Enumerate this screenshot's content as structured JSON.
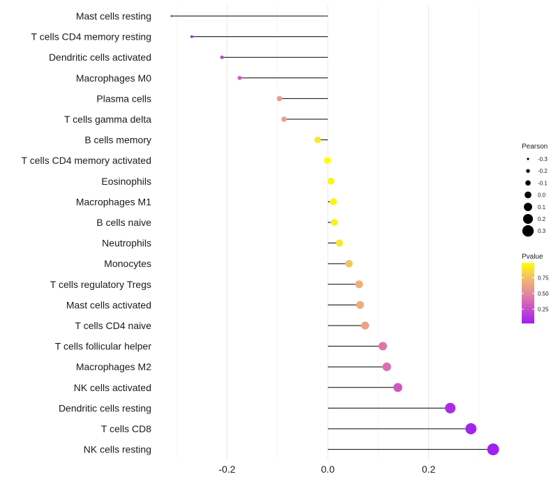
{
  "chart_data": {
    "type": "lollipop",
    "title": "",
    "xlabel": "",
    "ylabel": "",
    "xlim": [
      -0.335,
      0.335
    ],
    "x_ticks": [
      {
        "value": -0.2,
        "label": "-0.2"
      },
      {
        "value": 0.0,
        "label": "0.0"
      },
      {
        "value": 0.2,
        "label": "0.2"
      }
    ],
    "grid": true,
    "categories": [
      "Mast cells resting",
      "T cells CD4 memory resting",
      "Dendritic cells activated",
      "Macrophages M0",
      "Plasma cells",
      "T cells gamma delta",
      "B cells memory",
      "T cells CD4 memory activated",
      "Eosinophils",
      "Macrophages M1",
      "B cells naive",
      "Neutrophils",
      "Monocytes",
      "T cells regulatory  Tregs ",
      "Mast cells activated",
      "T cells CD4 naive",
      "T cells follicular helper",
      "Macrophages M2",
      "NK cells activated",
      "Dendritic cells resting",
      "T cells CD8",
      "NK cells resting"
    ],
    "pearson": [
      -0.31,
      -0.27,
      -0.21,
      -0.175,
      -0.096,
      -0.087,
      -0.02,
      -0.001,
      0.006,
      0.011,
      0.013,
      0.023,
      0.042,
      0.062,
      0.064,
      0.074,
      0.109,
      0.117,
      0.139,
      0.243,
      0.284,
      0.328
    ],
    "pvalue": [
      0.03,
      0.06,
      0.2,
      0.32,
      0.6,
      0.62,
      0.9,
      0.99,
      0.97,
      0.95,
      0.94,
      0.9,
      0.78,
      0.68,
      0.67,
      0.62,
      0.43,
      0.4,
      0.3,
      0.08,
      0.04,
      0.02
    ],
    "legend_size": {
      "title": "Pearson",
      "entries": [
        {
          "label": "-0.3",
          "value": -0.3
        },
        {
          "label": "-0.2",
          "value": -0.2
        },
        {
          "label": "-0.1",
          "value": -0.1
        },
        {
          "label": "0.0",
          "value": 0.0
        },
        {
          "label": "0.1",
          "value": 0.1
        },
        {
          "label": "0.2",
          "value": 0.2
        },
        {
          "label": "0.3",
          "value": 0.3
        }
      ]
    },
    "legend_color": {
      "title": "Pvalue",
      "range": [
        0.02,
        0.99
      ],
      "ticks": [
        {
          "label": "0.75",
          "value": 0.75
        },
        {
          "label": "0.50",
          "value": 0.5
        },
        {
          "label": "0.25",
          "value": 0.25
        }
      ]
    },
    "colors": {
      "low": "#a020f0",
      "mid": "#e4899e",
      "high": "#ffff00",
      "stem": "#000000",
      "grid": "#ebebeb"
    },
    "legend_placement": "right"
  }
}
